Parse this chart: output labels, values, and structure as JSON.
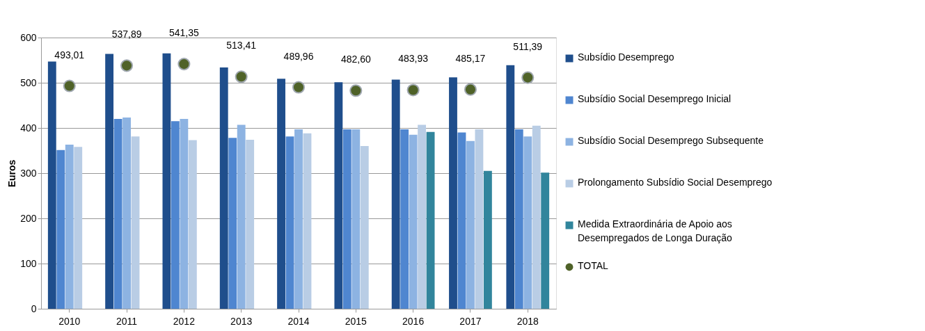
{
  "chart_data": {
    "type": "bar",
    "ylabel": "Euros",
    "categories": [
      "2010",
      "2011",
      "2012",
      "2013",
      "2014",
      "2015",
      "2016",
      "2017",
      "2018"
    ],
    "ylim": [
      0,
      600
    ],
    "yticks": [
      0,
      100,
      200,
      300,
      400,
      500,
      600
    ],
    "grid": "y",
    "legend": "right",
    "series": [
      {
        "name": "Subsídio Desemprego",
        "color": "#1f4e8c",
        "values": [
          547,
          564,
          565,
          534,
          509,
          501,
          507,
          512,
          539
        ]
      },
      {
        "name": "Subsídio Social Desemprego Inicial",
        "color": "#4f86d0",
        "values": [
          351,
          420,
          415,
          378,
          381,
          397,
          397,
          390,
          397
        ]
      },
      {
        "name": "Subsídio Social Desemprego Subsequente",
        "color": "#8db3e2",
        "values": [
          363,
          423,
          420,
          407,
          397,
          397,
          385,
          371,
          381
        ]
      },
      {
        "name": "Prolongamento Subsídio Social Desemprego",
        "color": "#b9cde5",
        "values": [
          358,
          381,
          373,
          374,
          388,
          360,
          407,
          397,
          405
        ]
      },
      {
        "name": "Medida Extraordinária de Apoio aos Desempregados de Longa Duração",
        "color": "#31859c",
        "values": [
          null,
          null,
          null,
          null,
          null,
          null,
          391,
          305,
          301
        ]
      },
      {
        "name": "TOTAL",
        "type": "scatter",
        "marker": "circle",
        "color": "#4f6228",
        "values": [
          493.01,
          537.89,
          541.35,
          513.41,
          489.96,
          482.6,
          483.93,
          485.17,
          511.39
        ],
        "value_labels": [
          "493,01",
          "537,89",
          "541,35",
          "513,41",
          "489,96",
          "482,60",
          "483,93",
          "485,17",
          "511,39"
        ]
      }
    ]
  }
}
